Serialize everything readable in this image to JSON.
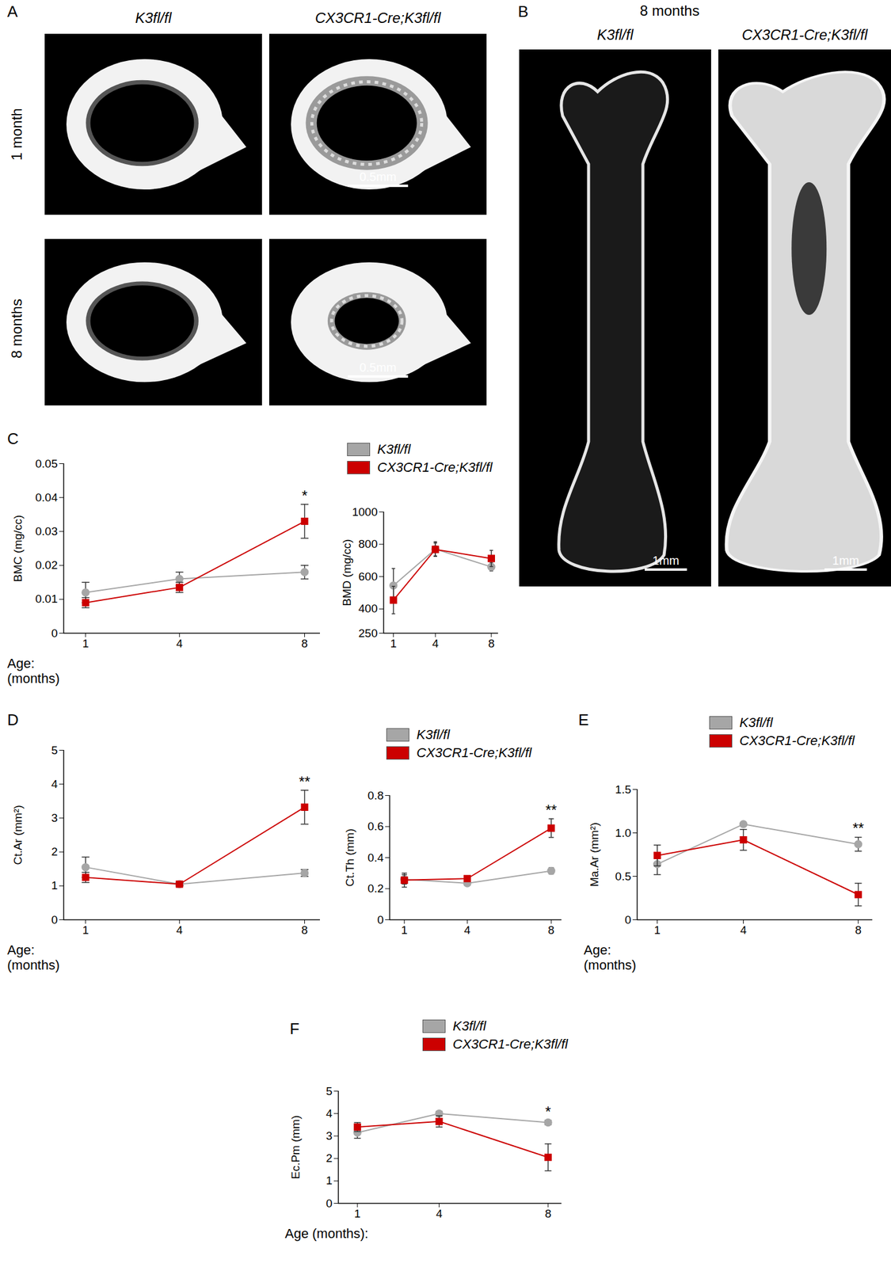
{
  "figure": {
    "A": {
      "letter": "A",
      "columns": [
        "K3fl/fl",
        "CX3CR1-Cre;K3fl/fl"
      ],
      "rows": [
        "1 month",
        "8 months"
      ],
      "scale_bar": "0.5mm"
    },
    "B": {
      "letter": "B",
      "title": "8 months",
      "columns": [
        "K3fl/fl",
        "CX3CR1-Cre;K3fl/fl"
      ],
      "scale_bar": "1mm"
    }
  },
  "chart_data": [
    {
      "type": "line",
      "panel": "C",
      "ylabel": "BMC (mg/cc)",
      "xlabel": "Age:\n(months)",
      "x": [
        1,
        4,
        8
      ],
      "xlim": [
        0.3,
        8.5
      ],
      "xticks": [
        1,
        4,
        8
      ],
      "ylim": [
        0,
        0.05
      ],
      "yticks": [
        0,
        0.01,
        0.02,
        0.03,
        0.04,
        0.05
      ],
      "legend": false,
      "series": [
        {
          "name": "K3fl/fl",
          "color": "#a6a6a6",
          "marker": "circle",
          "values": [
            0.012,
            0.016,
            0.018
          ],
          "errors": [
            0.003,
            0.002,
            0.002
          ]
        },
        {
          "name": "CX3CR1-Cre;K3fl/fl",
          "color": "#cc0000",
          "marker": "square",
          "values": [
            0.009,
            0.0135,
            0.033
          ],
          "errors": [
            0.0015,
            0.0015,
            0.005
          ]
        }
      ],
      "annotations": [
        {
          "x": 8,
          "text": "*"
        }
      ]
    },
    {
      "type": "line",
      "ylabel": "BMD (mg/cc)",
      "x": [
        1,
        4,
        8
      ],
      "xlim": [
        0.3,
        8.5
      ],
      "xticks": [
        1,
        4,
        8
      ],
      "ylim": [
        250,
        1000
      ],
      "yticks": [
        250,
        400,
        600,
        800,
        1000
      ],
      "legend": "top",
      "series": [
        {
          "name": "K3fl/fl",
          "color": "#a6a6a6",
          "marker": "circle",
          "values": [
            545,
            770,
            660
          ],
          "errors": [
            105,
            45,
            25
          ]
        },
        {
          "name": "CX3CR1-Cre;K3fl/fl",
          "color": "#cc0000",
          "marker": "square",
          "values": [
            455,
            768,
            712
          ],
          "errors": [
            85,
            40,
            50
          ]
        }
      ]
    },
    {
      "type": "line",
      "panel": "D",
      "ylabel": "Ct.Ar (mm²)",
      "xlabel": "Age:\n(months)",
      "x": [
        1,
        4,
        8
      ],
      "xlim": [
        0.3,
        8.5
      ],
      "xticks": [
        1,
        4,
        8
      ],
      "ylim": [
        0,
        5
      ],
      "yticks": [
        0,
        1,
        2,
        3,
        4,
        5
      ],
      "legend": false,
      "series": [
        {
          "name": "K3fl/fl",
          "color": "#a6a6a6",
          "marker": "circle",
          "values": [
            1.55,
            1.05,
            1.38
          ],
          "errors": [
            0.3,
            0.05,
            0.1
          ]
        },
        {
          "name": "CX3CR1-Cre;K3fl/fl",
          "color": "#cc0000",
          "marker": "square",
          "values": [
            1.25,
            1.05,
            3.32
          ],
          "errors": [
            0.15,
            0.05,
            0.5
          ]
        }
      ],
      "annotations": [
        {
          "x": 8,
          "text": "**"
        }
      ]
    },
    {
      "type": "line",
      "ylabel": "Ct.Th (mm)",
      "x": [
        1,
        4,
        8
      ],
      "xlim": [
        0.3,
        8.5
      ],
      "xticks": [
        1,
        4,
        8
      ],
      "ylim": [
        0,
        0.8
      ],
      "yticks": [
        0,
        0.2,
        0.4,
        0.6,
        0.8
      ],
      "legend": "top",
      "series": [
        {
          "name": "K3fl/fl",
          "color": "#a6a6a6",
          "marker": "circle",
          "values": [
            0.26,
            0.235,
            0.315
          ],
          "errors": [
            0.03,
            0.015,
            0.02
          ]
        },
        {
          "name": "CX3CR1-Cre;K3fl/fl",
          "color": "#cc0000",
          "marker": "square",
          "values": [
            0.255,
            0.265,
            0.59
          ],
          "errors": [
            0.045,
            0.01,
            0.06
          ]
        }
      ],
      "annotations": [
        {
          "x": 8,
          "text": "**"
        }
      ]
    },
    {
      "type": "line",
      "panel": "E",
      "ylabel": "Ma.Ar (mm²)",
      "xlabel": "Age:\n(months)",
      "x": [
        1,
        4,
        8
      ],
      "xlim": [
        0.3,
        8.5
      ],
      "xticks": [
        1,
        4,
        8
      ],
      "ylim": [
        0,
        1.5
      ],
      "yticks": [
        0,
        0.5,
        {
          "value": 1,
          "label": "1.0"
        },
        1.5
      ],
      "legend": "top",
      "series": [
        {
          "name": "K3fl/fl",
          "color": "#a6a6a6",
          "marker": "circle",
          "values": [
            0.64,
            1.1,
            0.87
          ],
          "errors": [
            0.12,
            0.01,
            0.08
          ]
        },
        {
          "name": "CX3CR1-Cre;K3fl/fl",
          "color": "#cc0000",
          "marker": "square",
          "values": [
            0.74,
            0.92,
            0.29
          ],
          "errors": [
            0.12,
            0.12,
            0.13
          ]
        }
      ],
      "annotations": [
        {
          "x": 8,
          "text": "**"
        }
      ]
    },
    {
      "type": "line",
      "panel": "F",
      "ylabel": "Ec.Pm (mm)",
      "xlabel": "Age (months):",
      "x": [
        1,
        4,
        8
      ],
      "xlim": [
        0.3,
        8.5
      ],
      "xticks": [
        1,
        4,
        8
      ],
      "ylim": [
        0,
        5
      ],
      "yticks": [
        0,
        1,
        2,
        3,
        4,
        5
      ],
      "legend": "top",
      "series": [
        {
          "name": "K3fl/fl",
          "color": "#a6a6a6",
          "marker": "circle",
          "values": [
            3.15,
            4.0,
            3.6
          ],
          "errors": [
            0.25,
            0.1,
            0.1
          ]
        },
        {
          "name": "CX3CR1-Cre;K3fl/fl",
          "color": "#cc0000",
          "marker": "square",
          "values": [
            3.4,
            3.65,
            2.05
          ],
          "errors": [
            0.2,
            0.25,
            0.6
          ]
        }
      ],
      "annotations": [
        {
          "x": 8,
          "text": "*"
        }
      ]
    }
  ]
}
